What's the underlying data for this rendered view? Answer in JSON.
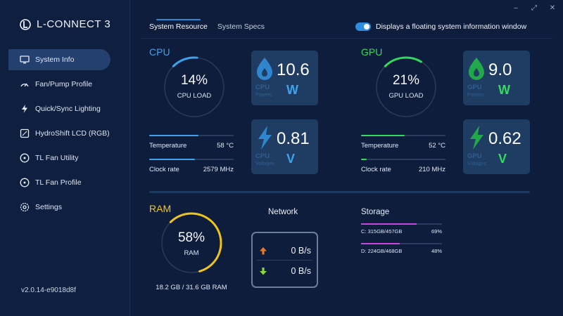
{
  "app": {
    "title": "L-CONNECT 3",
    "version": "v2.0.14-e9018d8f"
  },
  "window_controls": {
    "minimize": "–",
    "maximize": "⤢",
    "close": "✕"
  },
  "sidebar": {
    "items": [
      {
        "label": "System Info",
        "icon": "monitor-icon",
        "active": true
      },
      {
        "label": "Fan/Pump Profile",
        "icon": "fan-gauge-icon"
      },
      {
        "label": "Quick/Sync Lighting",
        "icon": "lightning-icon"
      },
      {
        "label": "HydroShift LCD (RGB)",
        "icon": "lcd-icon"
      },
      {
        "label": "TL Fan Utility",
        "icon": "fan-icon"
      },
      {
        "label": "TL Fan Profile",
        "icon": "fan-icon"
      },
      {
        "label": "Settings",
        "icon": "gear-icon"
      }
    ]
  },
  "tabs": [
    {
      "label": "System Resource",
      "active": true
    },
    {
      "label": "System Specs",
      "active": false
    }
  ],
  "toggle": {
    "label": "Displays a floating system information window",
    "on": true
  },
  "cpu": {
    "title": "CPU",
    "load_value": "14%",
    "load_label": "CPU LOAD",
    "load_fraction": 0.14,
    "temperature_label": "Temperature",
    "temperature_value": "58 °C",
    "temperature_fraction": 0.58,
    "clock_label": "Clock rate",
    "clock_value": "2579 MHz",
    "clock_fraction": 0.54,
    "power": {
      "value": "10.6",
      "unit": "W",
      "label1": "CPU",
      "label2": "Powers"
    },
    "voltage": {
      "value": "0.81",
      "unit": "V",
      "label1": "CPU",
      "label2": "Voltages"
    }
  },
  "gpu": {
    "title": "GPU",
    "load_value": "21%",
    "load_label": "GPU LOAD",
    "load_fraction": 0.21,
    "temperature_label": "Temperature",
    "temperature_value": "52 °C",
    "temperature_fraction": 0.52,
    "clock_label": "Clock rate",
    "clock_value": "210 MHz",
    "clock_fraction": 0.07,
    "power": {
      "value": "9.0",
      "unit": "W",
      "label1": "GPU",
      "label2": "Powers"
    },
    "voltage": {
      "value": "0.62",
      "unit": "V",
      "label1": "GPU",
      "label2": "Voltages"
    }
  },
  "ram": {
    "title": "RAM",
    "load_value": "58%",
    "load_label": "RAM",
    "load_fraction": 0.58,
    "usage": "18.2 GB / 31.6 GB RAM"
  },
  "network": {
    "title": "Network",
    "upload": "0 B/s",
    "download": "0 B/s"
  },
  "storage": {
    "title": "Storage",
    "drives": [
      {
        "label": "C: 315GB/457GB",
        "percent": "69%",
        "fraction": 0.69
      },
      {
        "label": "D: 224GB/468GB",
        "percent": "48%",
        "fraction": 0.48
      }
    ]
  },
  "colors": {
    "cpu": "#3ea3ec",
    "gpu": "#2fdc5c",
    "ram": "#f0c419",
    "storage": "#c844dc",
    "upload_arrow": "#e8792a",
    "download_arrow": "#8bd63a"
  }
}
